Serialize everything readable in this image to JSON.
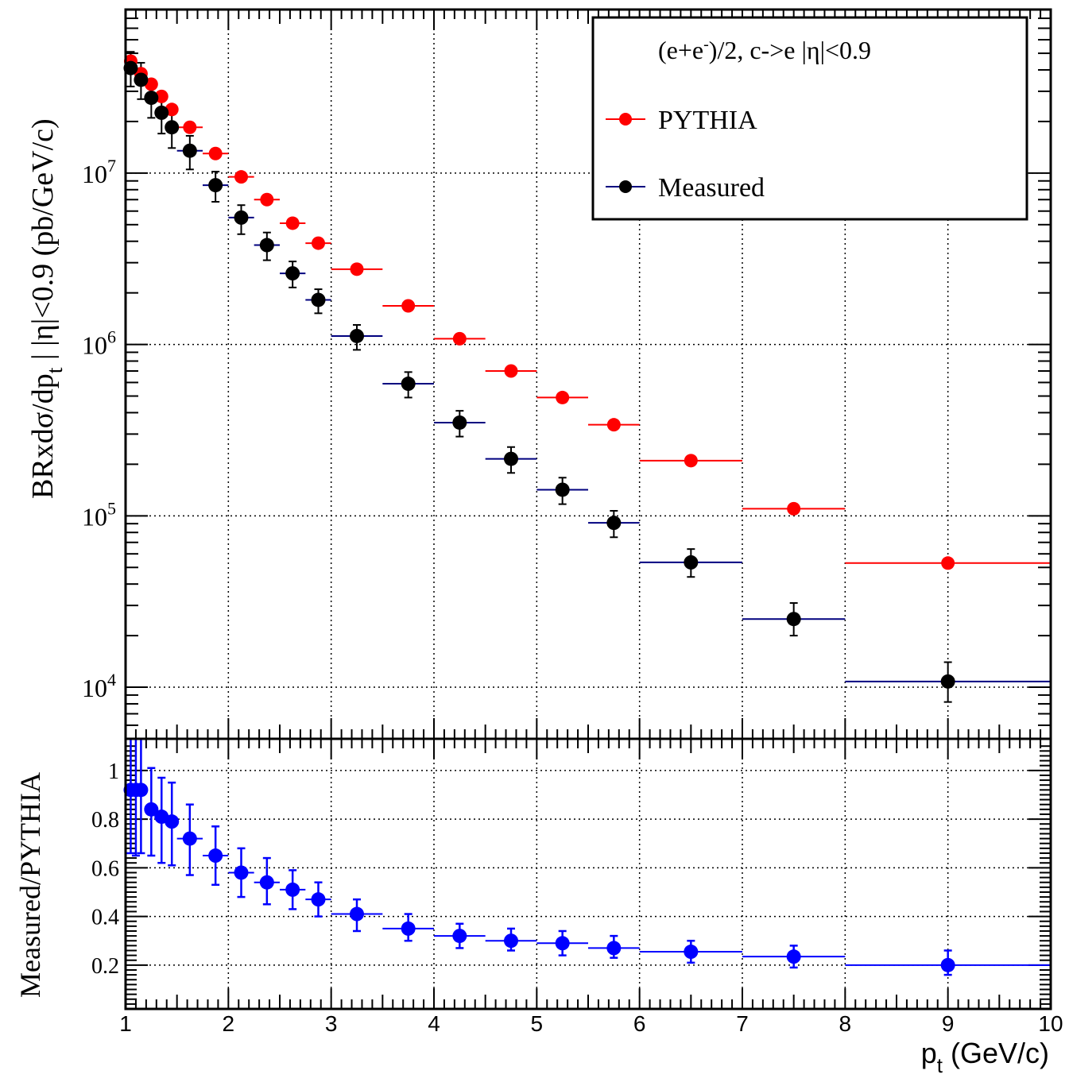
{
  "chart_data": [
    {
      "type": "scatter",
      "xlim": [
        1,
        10
      ],
      "ylim": [
        5000,
        90000000
      ],
      "y_scale": "log",
      "ylabel": "BRxdσ/dp_t | |η|<0.9 (pb/GeV/c)",
      "ylabel_parts": {
        "a": "BRxdσ/dp",
        "sub": "t",
        "b": " | |η|<0.9  (pb/GeV/c)"
      },
      "y_ticks": [
        {
          "value": 10000,
          "base": "10",
          "exp": "4"
        },
        {
          "value": 100000,
          "base": "10",
          "exp": "5"
        },
        {
          "value": 1000000,
          "base": "10",
          "exp": "6"
        },
        {
          "value": 10000000,
          "base": "10",
          "exp": "7"
        }
      ],
      "grid": true,
      "legend": {
        "placement": "top-right",
        "title": {
          "a": "(e+e",
          "sup": "-",
          "b": ")/2, c->e |η|<0.9"
        }
      },
      "series": [
        {
          "name": "PYTHIA",
          "color": "#ff0000",
          "points": [
            {
              "x": 1.05,
              "xlo": 1.0,
              "xhi": 1.1,
              "y": 45000000
            },
            {
              "x": 1.15,
              "xlo": 1.1,
              "xhi": 1.2,
              "y": 38000000
            },
            {
              "x": 1.25,
              "xlo": 1.2,
              "xhi": 1.3,
              "y": 33000000
            },
            {
              "x": 1.35,
              "xlo": 1.3,
              "xhi": 1.4,
              "y": 28000000
            },
            {
              "x": 1.45,
              "xlo": 1.4,
              "xhi": 1.5,
              "y": 23500000
            },
            {
              "x": 1.625,
              "xlo": 1.5,
              "xhi": 1.75,
              "y": 18500000
            },
            {
              "x": 1.875,
              "xlo": 1.75,
              "xhi": 2.0,
              "y": 13000000
            },
            {
              "x": 2.125,
              "xlo": 2.0,
              "xhi": 2.25,
              "y": 9500000
            },
            {
              "x": 2.375,
              "xlo": 2.25,
              "xhi": 2.5,
              "y": 7000000
            },
            {
              "x": 2.625,
              "xlo": 2.5,
              "xhi": 2.75,
              "y": 5100000
            },
            {
              "x": 2.875,
              "xlo": 2.75,
              "xhi": 3.0,
              "y": 3900000
            },
            {
              "x": 3.25,
              "xlo": 3.0,
              "xhi": 3.5,
              "y": 2750000
            },
            {
              "x": 3.75,
              "xlo": 3.5,
              "xhi": 4.0,
              "y": 1680000
            },
            {
              "x": 4.25,
              "xlo": 4.0,
              "xhi": 4.5,
              "y": 1080000
            },
            {
              "x": 4.75,
              "xlo": 4.5,
              "xhi": 5.0,
              "y": 700000
            },
            {
              "x": 5.25,
              "xlo": 5.0,
              "xhi": 5.5,
              "y": 490000
            },
            {
              "x": 5.75,
              "xlo": 5.5,
              "xhi": 6.0,
              "y": 340000
            },
            {
              "x": 6.5,
              "xlo": 6.0,
              "xhi": 7.0,
              "y": 210000
            },
            {
              "x": 7.5,
              "xlo": 7.0,
              "xhi": 8.0,
              "y": 110000
            },
            {
              "x": 9.0,
              "xlo": 8.0,
              "xhi": 10.0,
              "y": 53000
            }
          ]
        },
        {
          "name": "Measured",
          "color": "#000000",
          "bar_color": "#00007f",
          "points": [
            {
              "x": 1.05,
              "xlo": 1.0,
              "xhi": 1.1,
              "y": 41000000,
              "ylo": 32000000,
              "yhi": 51000000
            },
            {
              "x": 1.15,
              "xlo": 1.1,
              "xhi": 1.2,
              "y": 35000000,
              "ylo": 27000000,
              "yhi": 44000000
            },
            {
              "x": 1.25,
              "xlo": 1.2,
              "xhi": 1.3,
              "y": 27500000,
              "ylo": 21000000,
              "yhi": 34000000
            },
            {
              "x": 1.35,
              "xlo": 1.3,
              "xhi": 1.4,
              "y": 22500000,
              "ylo": 17000000,
              "yhi": 28000000
            },
            {
              "x": 1.45,
              "xlo": 1.4,
              "xhi": 1.5,
              "y": 18500000,
              "ylo": 14000000,
              "yhi": 23000000
            },
            {
              "x": 1.625,
              "xlo": 1.5,
              "xhi": 1.75,
              "y": 13500000,
              "ylo": 10500000,
              "yhi": 16500000
            },
            {
              "x": 1.875,
              "xlo": 1.75,
              "xhi": 2.0,
              "y": 8500000,
              "ylo": 6800000,
              "yhi": 10200000
            },
            {
              "x": 2.125,
              "xlo": 2.0,
              "xhi": 2.25,
              "y": 5500000,
              "ylo": 4400000,
              "yhi": 6500000
            },
            {
              "x": 2.375,
              "xlo": 2.25,
              "xhi": 2.5,
              "y": 3800000,
              "ylo": 3100000,
              "yhi": 4500000
            },
            {
              "x": 2.625,
              "xlo": 2.5,
              "xhi": 2.75,
              "y": 2600000,
              "ylo": 2150000,
              "yhi": 3050000
            },
            {
              "x": 2.875,
              "xlo": 2.75,
              "xhi": 3.0,
              "y": 1820000,
              "ylo": 1520000,
              "yhi": 2100000
            },
            {
              "x": 3.25,
              "xlo": 3.0,
              "xhi": 3.5,
              "y": 1120000,
              "ylo": 930000,
              "yhi": 1300000
            },
            {
              "x": 3.75,
              "xlo": 3.5,
              "xhi": 4.0,
              "y": 590000,
              "ylo": 490000,
              "yhi": 690000
            },
            {
              "x": 4.25,
              "xlo": 4.0,
              "xhi": 4.5,
              "y": 350000,
              "ylo": 290000,
              "yhi": 410000
            },
            {
              "x": 4.75,
              "xlo": 4.5,
              "xhi": 5.0,
              "y": 215000,
              "ylo": 178000,
              "yhi": 252000
            },
            {
              "x": 5.25,
              "xlo": 5.0,
              "xhi": 5.5,
              "y": 142000,
              "ylo": 117000,
              "yhi": 167000
            },
            {
              "x": 5.75,
              "xlo": 5.5,
              "xhi": 6.0,
              "y": 91000,
              "ylo": 75000,
              "yhi": 107000
            },
            {
              "x": 6.5,
              "xlo": 6.0,
              "xhi": 7.0,
              "y": 53500,
              "ylo": 44000,
              "yhi": 64000
            },
            {
              "x": 7.5,
              "xlo": 7.0,
              "xhi": 8.0,
              "y": 25000,
              "ylo": 20000,
              "yhi": 31000
            },
            {
              "x": 9.0,
              "xlo": 8.0,
              "xhi": 10.0,
              "y": 10800,
              "ylo": 8200,
              "yhi": 14000
            }
          ]
        }
      ]
    },
    {
      "type": "scatter",
      "xlim": [
        1,
        10
      ],
      "ylim": [
        0.02,
        1.13
      ],
      "ylabel": "Measured/PYTHIA",
      "y_ticks": [
        {
          "value": 0.2,
          "label": "0.2"
        },
        {
          "value": 0.4,
          "label": "0.4"
        },
        {
          "value": 0.6,
          "label": "0.6"
        },
        {
          "value": 0.8,
          "label": "0.8"
        },
        {
          "value": 1.0,
          "label": "1"
        }
      ],
      "x_ticks": [
        {
          "value": 1,
          "label": "1"
        },
        {
          "value": 2,
          "label": "2"
        },
        {
          "value": 3,
          "label": "3"
        },
        {
          "value": 4,
          "label": "4"
        },
        {
          "value": 5,
          "label": "5"
        },
        {
          "value": 6,
          "label": "6"
        },
        {
          "value": 7,
          "label": "7"
        },
        {
          "value": 8,
          "label": "8"
        },
        {
          "value": 9,
          "label": "9"
        },
        {
          "value": 10,
          "label": "10"
        }
      ],
      "xlabel": "p_t (GeV/c)",
      "xlabel_parts": {
        "a": "p",
        "sub": "t",
        "b": " (GeV/c)"
      },
      "grid": true,
      "series": [
        {
          "color": "#0000ff",
          "points": [
            {
              "x": 1.05,
              "xlo": 1.0,
              "xhi": 1.1,
              "y": 0.92,
              "ylo": 0.66,
              "yhi": 1.14
            },
            {
              "x": 1.1,
              "xlo": 1.05,
              "xhi": 1.15,
              "y": 0.92,
              "ylo": 0.65,
              "yhi": 1.13
            },
            {
              "x": 1.15,
              "xlo": 1.1,
              "xhi": 1.2,
              "y": 0.92,
              "ylo": 0.66,
              "yhi": 1.13
            },
            {
              "x": 1.25,
              "xlo": 1.2,
              "xhi": 1.3,
              "y": 0.84,
              "ylo": 0.65,
              "yhi": 1.01
            },
            {
              "x": 1.35,
              "xlo": 1.3,
              "xhi": 1.4,
              "y": 0.81,
              "ylo": 0.62,
              "yhi": 0.97
            },
            {
              "x": 1.45,
              "xlo": 1.4,
              "xhi": 1.5,
              "y": 0.79,
              "ylo": 0.61,
              "yhi": 0.95
            },
            {
              "x": 1.625,
              "xlo": 1.5,
              "xhi": 1.75,
              "y": 0.72,
              "ylo": 0.57,
              "yhi": 0.86
            },
            {
              "x": 1.875,
              "xlo": 1.75,
              "xhi": 2.0,
              "y": 0.65,
              "ylo": 0.53,
              "yhi": 0.77
            },
            {
              "x": 2.125,
              "xlo": 2.0,
              "xhi": 2.25,
              "y": 0.58,
              "ylo": 0.48,
              "yhi": 0.68
            },
            {
              "x": 2.375,
              "xlo": 2.25,
              "xhi": 2.5,
              "y": 0.54,
              "ylo": 0.45,
              "yhi": 0.64
            },
            {
              "x": 2.625,
              "xlo": 2.5,
              "xhi": 2.75,
              "y": 0.51,
              "ylo": 0.43,
              "yhi": 0.59
            },
            {
              "x": 2.875,
              "xlo": 2.75,
              "xhi": 3.0,
              "y": 0.47,
              "ylo": 0.4,
              "yhi": 0.54
            },
            {
              "x": 3.25,
              "xlo": 3.0,
              "xhi": 3.5,
              "y": 0.41,
              "ylo": 0.34,
              "yhi": 0.47
            },
            {
              "x": 3.75,
              "xlo": 3.5,
              "xhi": 4.0,
              "y": 0.35,
              "ylo": 0.3,
              "yhi": 0.41
            },
            {
              "x": 4.25,
              "xlo": 4.0,
              "xhi": 4.5,
              "y": 0.32,
              "ylo": 0.27,
              "yhi": 0.37
            },
            {
              "x": 4.75,
              "xlo": 4.5,
              "xhi": 5.0,
              "y": 0.3,
              "ylo": 0.26,
              "yhi": 0.35
            },
            {
              "x": 5.25,
              "xlo": 5.0,
              "xhi": 5.5,
              "y": 0.29,
              "ylo": 0.24,
              "yhi": 0.34
            },
            {
              "x": 5.75,
              "xlo": 5.5,
              "xhi": 6.0,
              "y": 0.27,
              "ylo": 0.23,
              "yhi": 0.32
            },
            {
              "x": 6.5,
              "xlo": 6.0,
              "xhi": 7.0,
              "y": 0.255,
              "ylo": 0.21,
              "yhi": 0.3
            },
            {
              "x": 7.5,
              "xlo": 7.0,
              "xhi": 8.0,
              "y": 0.235,
              "ylo": 0.19,
              "yhi": 0.28
            },
            {
              "x": 9.0,
              "xlo": 8.0,
              "xhi": 10.0,
              "y": 0.2,
              "ylo": 0.16,
              "yhi": 0.26
            }
          ]
        }
      ]
    }
  ]
}
